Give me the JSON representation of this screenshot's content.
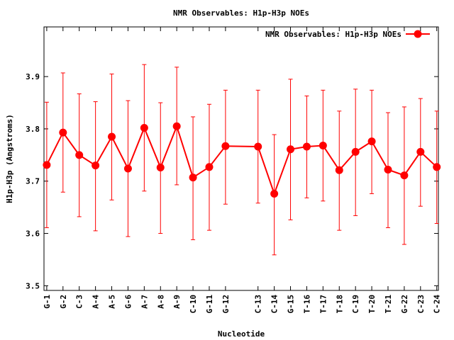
{
  "chart_data": {
    "type": "line",
    "title": "NMR Observables: H1p-H3p NOEs",
    "xlabel": "Nucleotide",
    "ylabel": "H1p-H3p (Angstroms)",
    "ylim": [
      3.491,
      3.995
    ],
    "xlim": [
      0.83,
      25.1
    ],
    "yticks": [
      3.5,
      3.6,
      3.7,
      3.8,
      3.9
    ],
    "ytick_labels": [
      "3.5",
      "3.6",
      "3.7",
      "3.8",
      "3.9"
    ],
    "grid": false,
    "legend": {
      "position": "top-right",
      "label": "NMR Observables: H1p-H3p NOEs"
    },
    "series_color": "#ff0000",
    "categories": [
      "G-1",
      "G-2",
      "C-3",
      "A-4",
      "A-5",
      "G-6",
      "A-7",
      "A-8",
      "A-9",
      "C-10",
      "G-11",
      "G-12",
      "C-13",
      "C-14",
      "G-15",
      "T-16",
      "T-17",
      "T-18",
      "C-19",
      "T-20",
      "T-21",
      "G-22",
      "C-23",
      "C-24"
    ],
    "x": [
      1,
      2,
      3,
      4,
      5,
      6,
      7,
      8,
      9,
      10,
      11,
      12,
      14,
      15,
      16,
      17,
      18,
      19,
      20,
      21,
      22,
      23,
      24,
      25
    ],
    "values": [
      3.731,
      3.793,
      3.75,
      3.73,
      3.785,
      3.724,
      3.802,
      3.726,
      3.805,
      3.707,
      3.727,
      3.767,
      3.766,
      3.676,
      3.761,
      3.766,
      3.768,
      3.721,
      3.756,
      3.776,
      3.722,
      3.711,
      3.756,
      3.727
    ],
    "err_high": [
      3.851,
      3.907,
      3.867,
      3.852,
      3.905,
      3.854,
      3.923,
      3.85,
      3.918,
      3.823,
      3.847,
      3.874,
      3.874,
      3.789,
      3.895,
      3.863,
      3.874,
      3.834,
      3.876,
      3.874,
      3.831,
      3.842,
      3.858,
      3.834
    ],
    "err_low": [
      3.611,
      3.679,
      3.632,
      3.605,
      3.664,
      3.594,
      3.681,
      3.6,
      3.693,
      3.588,
      3.606,
      3.656,
      3.658,
      3.559,
      3.626,
      3.668,
      3.662,
      3.606,
      3.634,
      3.676,
      3.611,
      3.579,
      3.652,
      3.619
    ]
  }
}
